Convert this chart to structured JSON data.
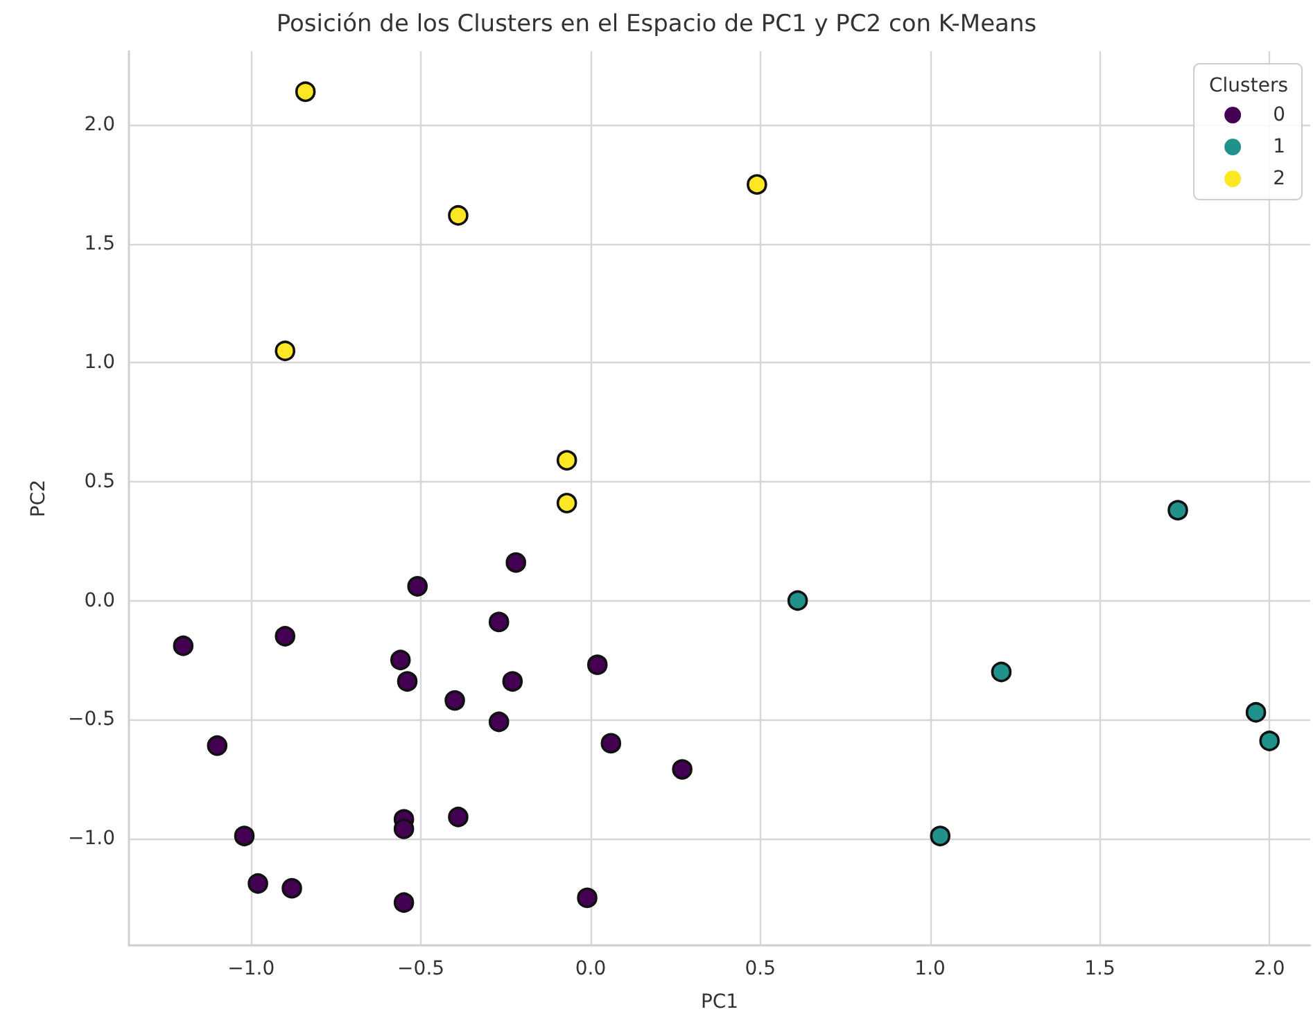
{
  "chart_data": {
    "type": "scatter",
    "title": "Posición de los Clusters en el Espacio de PC1 y PC2 con K-Means",
    "xlabel": "PC1",
    "ylabel": "PC2",
    "legend_title": "Clusters",
    "legend": "top right",
    "grid": true,
    "marker": "circle",
    "xlim": [
      -1.36,
      2.12
    ],
    "ylim": [
      -1.45,
      2.31
    ],
    "xticks": [
      {
        "value": -1.0,
        "label": "−1.0"
      },
      {
        "value": -0.5,
        "label": "−0.5"
      },
      {
        "value": 0,
        "label": "0.0"
      },
      {
        "value": 0.5,
        "label": "0.5"
      },
      {
        "value": 1.0,
        "label": "1.0"
      },
      {
        "value": 1.5,
        "label": "1.5"
      },
      {
        "value": 2.0,
        "label": "2.0"
      }
    ],
    "yticks": [
      {
        "value": -1.0,
        "label": "−1.0"
      },
      {
        "value": -0.5,
        "label": "−0.5"
      },
      {
        "value": 0,
        "label": "0.0"
      },
      {
        "value": 0.5,
        "label": "0.5"
      },
      {
        "value": 1.0,
        "label": "1.0"
      },
      {
        "value": 1.5,
        "label": "1.5"
      },
      {
        "value": 2.0,
        "label": "2.0"
      }
    ],
    "series": [
      {
        "name": "0",
        "color": "#440154",
        "x": [
          -0.22,
          -0.51,
          -0.27,
          -1.2,
          -0.9,
          -0.56,
          -0.54,
          0.02,
          -0.23,
          -0.4,
          -0.27,
          -1.1,
          0.06,
          0.27,
          -0.55,
          -0.55,
          -0.39,
          -1.02,
          -0.98,
          -0.88,
          -0.55,
          -0.01
        ],
        "values": [
          0.16,
          0.06,
          -0.09,
          -0.19,
          -0.15,
          -0.25,
          -0.34,
          -0.27,
          -0.34,
          -0.42,
          -0.51,
          -0.61,
          -0.6,
          -0.71,
          -0.92,
          -0.96,
          -0.91,
          -0.99,
          -1.19,
          -1.21,
          -1.27,
          -1.25
        ]
      },
      {
        "name": "1",
        "color": "#21918c",
        "x": [
          0.61,
          1.73,
          1.21,
          1.96,
          2.0,
          1.03
        ],
        "values": [
          0.0,
          0.38,
          -0.3,
          -0.47,
          -0.59,
          -0.99
        ]
      },
      {
        "name": "2",
        "color": "#fde725",
        "x": [
          -0.84,
          -0.39,
          -0.9,
          -0.07,
          -0.07,
          0.49
        ],
        "values": [
          2.14,
          1.62,
          1.05,
          0.59,
          0.41,
          1.75
        ]
      }
    ]
  }
}
